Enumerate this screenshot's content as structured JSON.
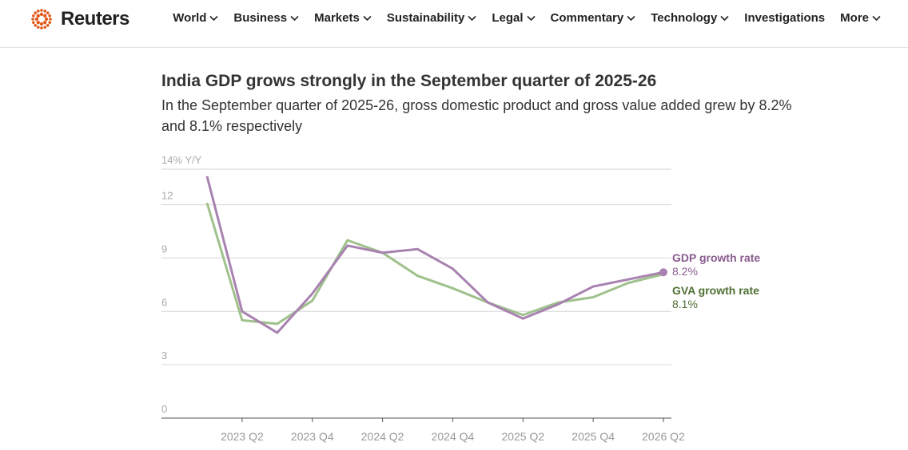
{
  "header": {
    "logo": "Reuters",
    "nav": [
      "World",
      "Business",
      "Markets",
      "Sustainability",
      "Legal",
      "Commentary",
      "Technology",
      "Investigations",
      "More"
    ]
  },
  "chart_data": {
    "type": "line",
    "title": "India GDP grows strongly in the September quarter of 2025-26",
    "subtitle": "In the September quarter of 2025-26, gross domestic product and gross value added grew by 8.2% and 8.1% respectively",
    "categories": [
      null,
      "2023 Q2",
      null,
      "2023 Q4",
      null,
      "2024 Q2",
      null,
      "2024 Q4",
      null,
      "2025 Q2",
      null,
      "2025 Q4",
      null,
      "2026 Q2"
    ],
    "series": [
      {
        "name": "GDP growth rate",
        "color": "#a882b0",
        "label_color": "#8a5b90",
        "values": [
          13.6,
          6.0,
          4.8,
          7.0,
          9.7,
          9.3,
          9.5,
          8.4,
          6.5,
          5.6,
          6.4,
          7.4,
          7.8,
          8.2
        ],
        "value_labels": [
          null,
          null,
          null,
          null,
          null,
          null,
          null,
          null,
          null,
          null,
          null,
          null,
          null,
          "8.2%"
        ]
      },
      {
        "name": "GVA growth rate",
        "color": "#9fc18c",
        "label_color": "#4f6f33",
        "values": [
          12.1,
          5.5,
          5.3,
          6.6,
          10.0,
          9.3,
          8.0,
          7.3,
          6.5,
          5.8,
          6.5,
          6.8,
          7.6,
          8.1
        ],
        "value_labels": [
          null,
          null,
          null,
          null,
          null,
          null,
          null,
          null,
          null,
          null,
          null,
          null,
          null,
          "8.1%"
        ]
      }
    ],
    "ylim": [
      0,
      14
    ],
    "yticks": [
      0,
      3,
      6,
      9,
      12,
      {
        "value": 14,
        "label": "14% Y/Y"
      }
    ],
    "grid": true
  }
}
